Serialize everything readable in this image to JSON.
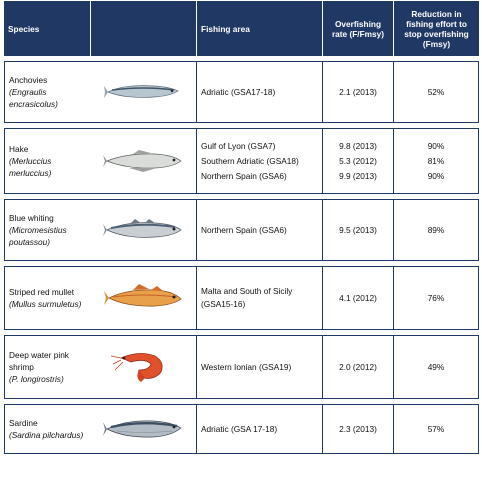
{
  "headers": {
    "species": "Species",
    "area": "Fishing area",
    "rate": "Overfishing rate (F/Fmsy)",
    "reduction": "Reduction in fishing effort to stop overfishing (Fmsy)"
  },
  "rows": [
    {
      "common": "Anchovies",
      "latin": "(Engraulis encrasicolus)",
      "areas": [
        "Adriatic (GSA17-18)"
      ],
      "rates": [
        "2.1 (2013)"
      ],
      "reductions": [
        "52%"
      ],
      "icon": "anchovy-fish-icon"
    },
    {
      "common": "Hake",
      "latin": "(Merluccius merluccius)",
      "areas": [
        "Gulf of Lyon (GSA7)",
        "Southern Adriatic (GSA18)",
        "Northern Spain (GSA6)"
      ],
      "rates": [
        "9.8 (2013)",
        "5.3 (2012)",
        "9.9 (2013)"
      ],
      "reductions": [
        "90%",
        "81%",
        "90%"
      ],
      "icon": "hake-fish-icon"
    },
    {
      "common": "Blue whiting",
      "latin": "(Micromesistius poutassou)",
      "areas": [
        "Northern Spain (GSA6)"
      ],
      "rates": [
        "9.5 (2013)"
      ],
      "reductions": [
        "89%"
      ],
      "icon": "blue-whiting-fish-icon"
    },
    {
      "common": "Striped red mullet",
      "latin": "(Mullus surmuletus)",
      "areas": [
        "Malta and South of Sicily (GSA15-16)"
      ],
      "rates": [
        "4.1 (2012)"
      ],
      "reductions": [
        "76%"
      ],
      "icon": "red-mullet-fish-icon"
    },
    {
      "common": "Deep water pink shrimp",
      "latin": "(P. longirostris)",
      "areas": [
        "Western Ionian (GSA19)"
      ],
      "rates": [
        "2.0 (2012)"
      ],
      "reductions": [
        "49%"
      ],
      "icon": "pink-shrimp-icon"
    },
    {
      "common": "Sardine",
      "latin": "(Sardina pilchardus)",
      "areas": [
        "Adriatic (GSA 17-18)"
      ],
      "rates": [
        "2.3 (2013)"
      ],
      "reductions": [
        "57%"
      ],
      "icon": "sardine-fish-icon"
    }
  ]
}
